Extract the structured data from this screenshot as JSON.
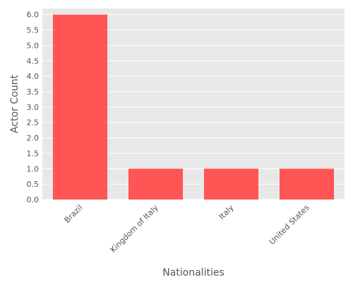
{
  "chart_data": {
    "type": "bar",
    "categories": [
      "Brazil",
      "Kingdom of Italy",
      "Italy",
      "United States"
    ],
    "series": [
      {
        "values": [
          6,
          1,
          1,
          1
        ],
        "color": "#ff5555"
      }
    ],
    "xlabel": "Nationalities",
    "ylabel": "Actor Count",
    "ylim": [
      0,
      6.2
    ],
    "yticks": [
      "0.0",
      "0.5",
      "1.0",
      "1.5",
      "2.0",
      "2.5",
      "3.0",
      "3.5",
      "4.0",
      "4.5",
      "5.0",
      "5.5",
      "6.0"
    ],
    "grid": true,
    "background": "#e8e8e8",
    "gridline_color": "#ffffff"
  }
}
